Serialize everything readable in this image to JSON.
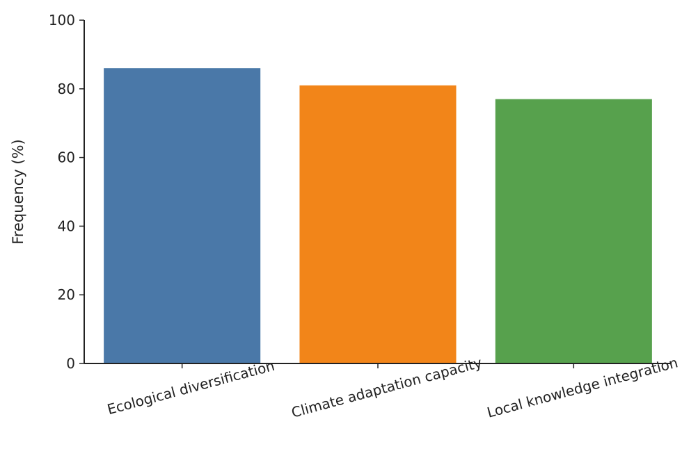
{
  "chart_data": {
    "type": "bar",
    "title": "",
    "xlabel": "",
    "ylabel": "Frequency (%)",
    "ylim": [
      0,
      100
    ],
    "yticks": [
      0,
      20,
      40,
      60,
      80,
      100
    ],
    "grid": false,
    "categories": [
      "Ecological diversification",
      "Climate adaptation capacity",
      "Local knowledge integration"
    ],
    "values": [
      86,
      81,
      77
    ],
    "colors": [
      "#4a78a8",
      "#f28519",
      "#57a14d"
    ]
  }
}
